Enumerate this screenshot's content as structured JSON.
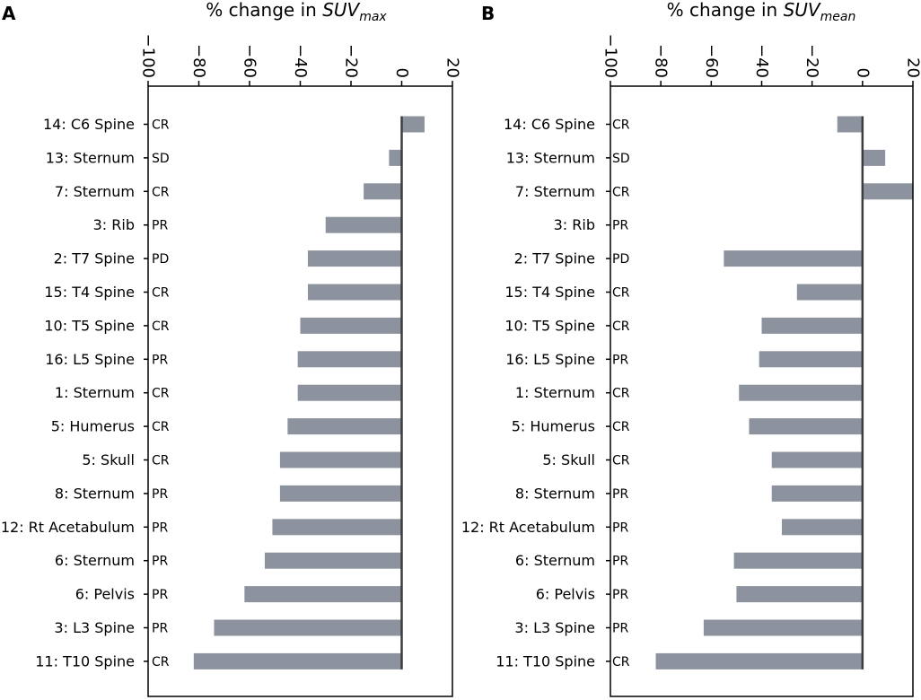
{
  "figure": {
    "colors": {
      "bar": "#8d939e",
      "axis": "#000000",
      "zero_line": "#3d3d3d"
    }
  },
  "chart_data": [
    {
      "type": "bar",
      "orientation": "horizontal",
      "panel_label": "A",
      "title_prefix": "% change in ",
      "title_var": "SUV",
      "title_sub": "max",
      "xlim": [
        -100,
        20
      ],
      "xticks": [
        -100,
        -80,
        -60,
        -40,
        -20,
        0,
        20
      ],
      "xtick_labels": [
        "−100",
        "−80",
        "−60",
        "−40",
        "−20",
        "0",
        "20"
      ],
      "categories": [
        "14: C6 Spine",
        "13: Sternum",
        "7: Sternum",
        "3: Rib",
        "2: T7 Spine",
        "15: T4 Spine",
        "10: T5 Spine",
        "16: L5 Spine",
        "1: Sternum",
        "5: Humerus",
        "5: Skull",
        "8: Sternum",
        "12: Rt Acetabulum",
        "6: Sternum",
        "6: Pelvis",
        "3: L3 Spine",
        "11: T10 Spine"
      ],
      "responses": [
        "CR",
        "SD",
        "CR",
        "PR",
        "PD",
        "CR",
        "CR",
        "PR",
        "CR",
        "CR",
        "CR",
        "PR",
        "PR",
        "PR",
        "PR",
        "PR",
        "CR"
      ],
      "values": [
        9,
        -5,
        -15,
        -30,
        -37,
        -37,
        -40,
        -41,
        -41,
        -45,
        -48,
        -48,
        -51,
        -54,
        -62,
        -74,
        -82
      ]
    },
    {
      "type": "bar",
      "orientation": "horizontal",
      "panel_label": "B",
      "title_prefix": "% change in ",
      "title_var": "SUV",
      "title_sub": "mean",
      "xlim": [
        -100,
        20
      ],
      "xticks": [
        -100,
        -80,
        -60,
        -40,
        -20,
        0,
        20
      ],
      "xtick_labels": [
        "−100",
        "−80",
        "−60",
        "−40",
        "−20",
        "0",
        "20"
      ],
      "categories": [
        "14: C6 Spine",
        "13: Sternum",
        "7: Sternum",
        "3: Rib",
        "2: T7 Spine",
        "15: T4 Spine",
        "10: T5 Spine",
        "16: L5 Spine",
        "1: Sternum",
        "5: Humerus",
        "5: Skull",
        "8: Sternum",
        "12: Rt Acetabulum",
        "6: Sternum",
        "6: Pelvis",
        "3: L3 Spine",
        "11: T10 Spine"
      ],
      "responses": [
        "CR",
        "SD",
        "CR",
        "PR",
        "PD",
        "CR",
        "CR",
        "PR",
        "CR",
        "CR",
        "CR",
        "PR",
        "PR",
        "PR",
        "PR",
        "PR",
        "CR"
      ],
      "values": [
        -10,
        9,
        20,
        0,
        -55,
        -26,
        -40,
        -41,
        -49,
        -45,
        -36,
        -36,
        -32,
        -51,
        -50,
        -63,
        -82
      ]
    }
  ]
}
